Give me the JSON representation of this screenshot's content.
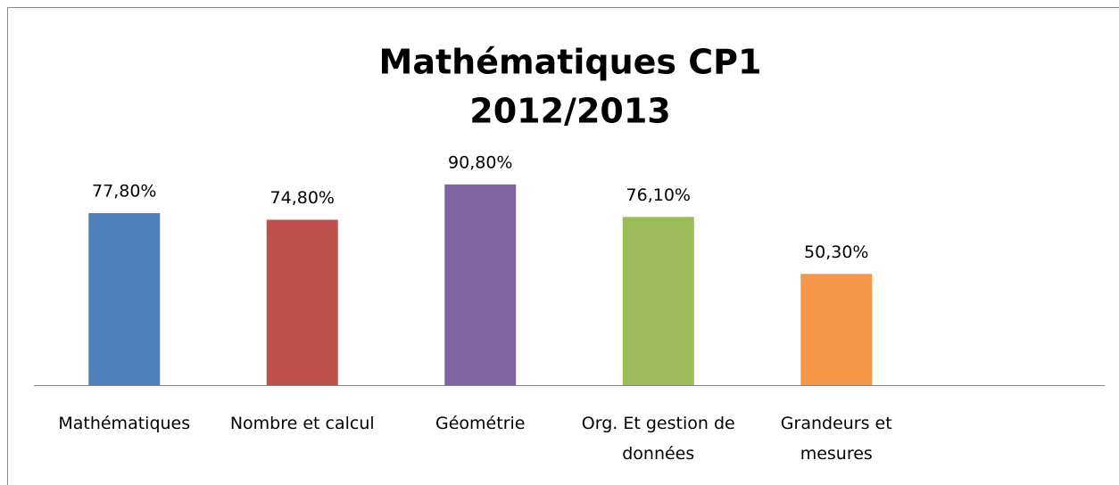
{
  "chart_data": {
    "type": "bar",
    "title": [
      "Mathématiques CP1",
      "2012/2013"
    ],
    "categories": [
      "Mathématiques",
      "Nombre et calcul",
      "Géométrie",
      "Org. Et gestion de données",
      "Grandeurs et mesures"
    ],
    "values": [
      77.8,
      74.8,
      90.8,
      76.1,
      50.3
    ],
    "value_labels": [
      "77,80%",
      "74,80%",
      "90,80%",
      "76,10%",
      "50,30%"
    ],
    "colors": [
      "#4f81bd",
      "#c0504d",
      "#8064a2",
      "#9bbb59",
      "#f79646"
    ],
    "ylim": [
      0,
      100
    ]
  }
}
